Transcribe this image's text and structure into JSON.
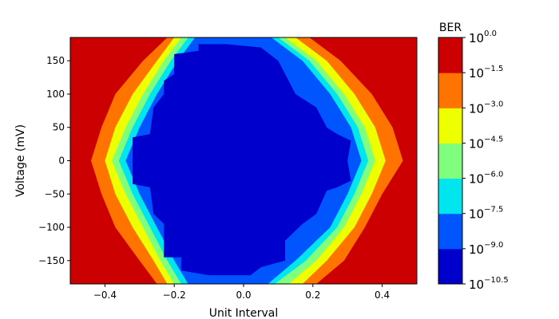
{
  "chart_data": {
    "type": "heatmap",
    "subtype": "contour-filled",
    "xlabel": "Unit Interval",
    "ylabel": "Voltage (mV)",
    "xlim": [
      -0.5,
      0.5
    ],
    "ylim": [
      -185,
      185
    ],
    "xticks": [
      -0.4,
      -0.2,
      0.0,
      0.2,
      0.4
    ],
    "xtick_labels": [
      "−0.4",
      "−0.2",
      "0.0",
      "0.2",
      "0.4"
    ],
    "yticks": [
      -150,
      -100,
      -50,
      0,
      50,
      100,
      150
    ],
    "ytick_labels": [
      "−150",
      "−100",
      "−50",
      "0",
      "50",
      "100",
      "150"
    ],
    "grid": false,
    "colorbar": {
      "title": "BER",
      "scale": "log10",
      "levels": [
        -10.5,
        -9.0,
        -7.5,
        -6.0,
        -4.5,
        -3.0,
        -1.5,
        0.0
      ],
      "level_labels": [
        "−10.5",
        "−9.0",
        "−7.5",
        "−6.0",
        "−4.5",
        "−3.0",
        "−1.5",
        "0.0"
      ],
      "colors": [
        "#0000cc",
        "#0055ff",
        "#00e5ee",
        "#80ff7f",
        "#eeff00",
        "#ff7300",
        "#cc0000"
      ]
    },
    "contours": [
      {
        "level": -1.5,
        "x": [
          [
            -0.22,
            185
          ],
          [
            -0.29,
            150
          ],
          [
            -0.37,
            100
          ],
          [
            -0.41,
            50
          ],
          [
            -0.44,
            0
          ],
          [
            -0.41,
            -50
          ],
          [
            -0.37,
            -100
          ],
          [
            -0.3,
            -150
          ],
          [
            -0.25,
            -185
          ],
          [
            0.21,
            -185
          ],
          [
            0.29,
            -150
          ],
          [
            0.35,
            -100
          ],
          [
            0.4,
            -50
          ],
          [
            0.46,
            0
          ],
          [
            0.43,
            50
          ],
          [
            0.37,
            100
          ],
          [
            0.28,
            150
          ],
          [
            0.19,
            185
          ]
        ]
      },
      {
        "level": -3.0,
        "x": [
          [
            -0.2,
            185
          ],
          [
            -0.25,
            150
          ],
          [
            -0.32,
            100
          ],
          [
            -0.37,
            50
          ],
          [
            -0.4,
            0
          ],
          [
            -0.37,
            -50
          ],
          [
            -0.32,
            -100
          ],
          [
            -0.26,
            -150
          ],
          [
            -0.22,
            -185
          ],
          [
            0.17,
            -185
          ],
          [
            0.24,
            -150
          ],
          [
            0.32,
            -100
          ],
          [
            0.37,
            -50
          ],
          [
            0.41,
            0
          ],
          [
            0.38,
            50
          ],
          [
            0.32,
            100
          ],
          [
            0.24,
            150
          ],
          [
            0.15,
            185
          ]
        ]
      },
      {
        "level": -4.5,
        "x": [
          [
            -0.18,
            185
          ],
          [
            -0.23,
            150
          ],
          [
            -0.29,
            100
          ],
          [
            -0.34,
            50
          ],
          [
            -0.38,
            0
          ],
          [
            -0.34,
            -50
          ],
          [
            -0.29,
            -100
          ],
          [
            -0.24,
            -150
          ],
          [
            -0.2,
            -185
          ],
          [
            0.13,
            -185
          ],
          [
            0.21,
            -150
          ],
          [
            0.29,
            -100
          ],
          [
            0.34,
            -50
          ],
          [
            0.38,
            0
          ],
          [
            0.35,
            50
          ],
          [
            0.29,
            100
          ],
          [
            0.21,
            150
          ],
          [
            0.12,
            185
          ]
        ]
      },
      {
        "level": -6.0,
        "x": [
          [
            -0.16,
            185
          ],
          [
            -0.21,
            150
          ],
          [
            -0.27,
            100
          ],
          [
            -0.32,
            50
          ],
          [
            -0.36,
            0
          ],
          [
            -0.32,
            -50
          ],
          [
            -0.27,
            -100
          ],
          [
            -0.22,
            -150
          ],
          [
            -0.18,
            -185
          ],
          [
            0.09,
            -185
          ],
          [
            0.18,
            -150
          ],
          [
            0.27,
            -100
          ],
          [
            0.32,
            -50
          ],
          [
            0.36,
            0
          ],
          [
            0.33,
            50
          ],
          [
            0.27,
            100
          ],
          [
            0.19,
            150
          ],
          [
            0.1,
            185
          ]
        ]
      },
      {
        "level": -7.5,
        "x": [
          [
            -0.14,
            185
          ],
          [
            -0.19,
            150
          ],
          [
            -0.25,
            100
          ],
          [
            -0.3,
            50
          ],
          [
            -0.34,
            0
          ],
          [
            -0.3,
            -50
          ],
          [
            -0.25,
            -100
          ],
          [
            -0.2,
            -150
          ],
          [
            -0.16,
            -185
          ],
          [
            0.07,
            -185
          ],
          [
            0.15,
            -150
          ],
          [
            0.25,
            -100
          ],
          [
            0.3,
            -50
          ],
          [
            0.34,
            0
          ],
          [
            0.31,
            50
          ],
          [
            0.25,
            100
          ],
          [
            0.17,
            150
          ],
          [
            0.08,
            185
          ]
        ]
      },
      {
        "level": -9.0,
        "x": [
          [
            -0.13,
            175
          ],
          [
            -0.13,
            165
          ],
          [
            -0.2,
            160
          ],
          [
            -0.2,
            130
          ],
          [
            -0.23,
            120
          ],
          [
            -0.23,
            100
          ],
          [
            -0.26,
            80
          ],
          [
            -0.27,
            40
          ],
          [
            -0.32,
            35
          ],
          [
            -0.32,
            -35
          ],
          [
            -0.27,
            -40
          ],
          [
            -0.26,
            -80
          ],
          [
            -0.23,
            -95
          ],
          [
            -0.23,
            -145
          ],
          [
            -0.18,
            -145
          ],
          [
            -0.18,
            -165
          ],
          [
            -0.1,
            -172
          ],
          [
            0.02,
            -172
          ],
          [
            0.05,
            -160
          ],
          [
            0.12,
            -150
          ],
          [
            0.12,
            -120
          ],
          [
            0.17,
            -95
          ],
          [
            0.21,
            -80
          ],
          [
            0.24,
            -45
          ],
          [
            0.27,
            -40
          ],
          [
            0.31,
            -30
          ],
          [
            0.3,
            0
          ],
          [
            0.31,
            30
          ],
          [
            0.27,
            40
          ],
          [
            0.24,
            50
          ],
          [
            0.21,
            80
          ],
          [
            0.15,
            100
          ],
          [
            0.12,
            130
          ],
          [
            0.1,
            150
          ],
          [
            0.05,
            170
          ],
          [
            -0.05,
            175
          ]
        ]
      }
    ]
  }
}
